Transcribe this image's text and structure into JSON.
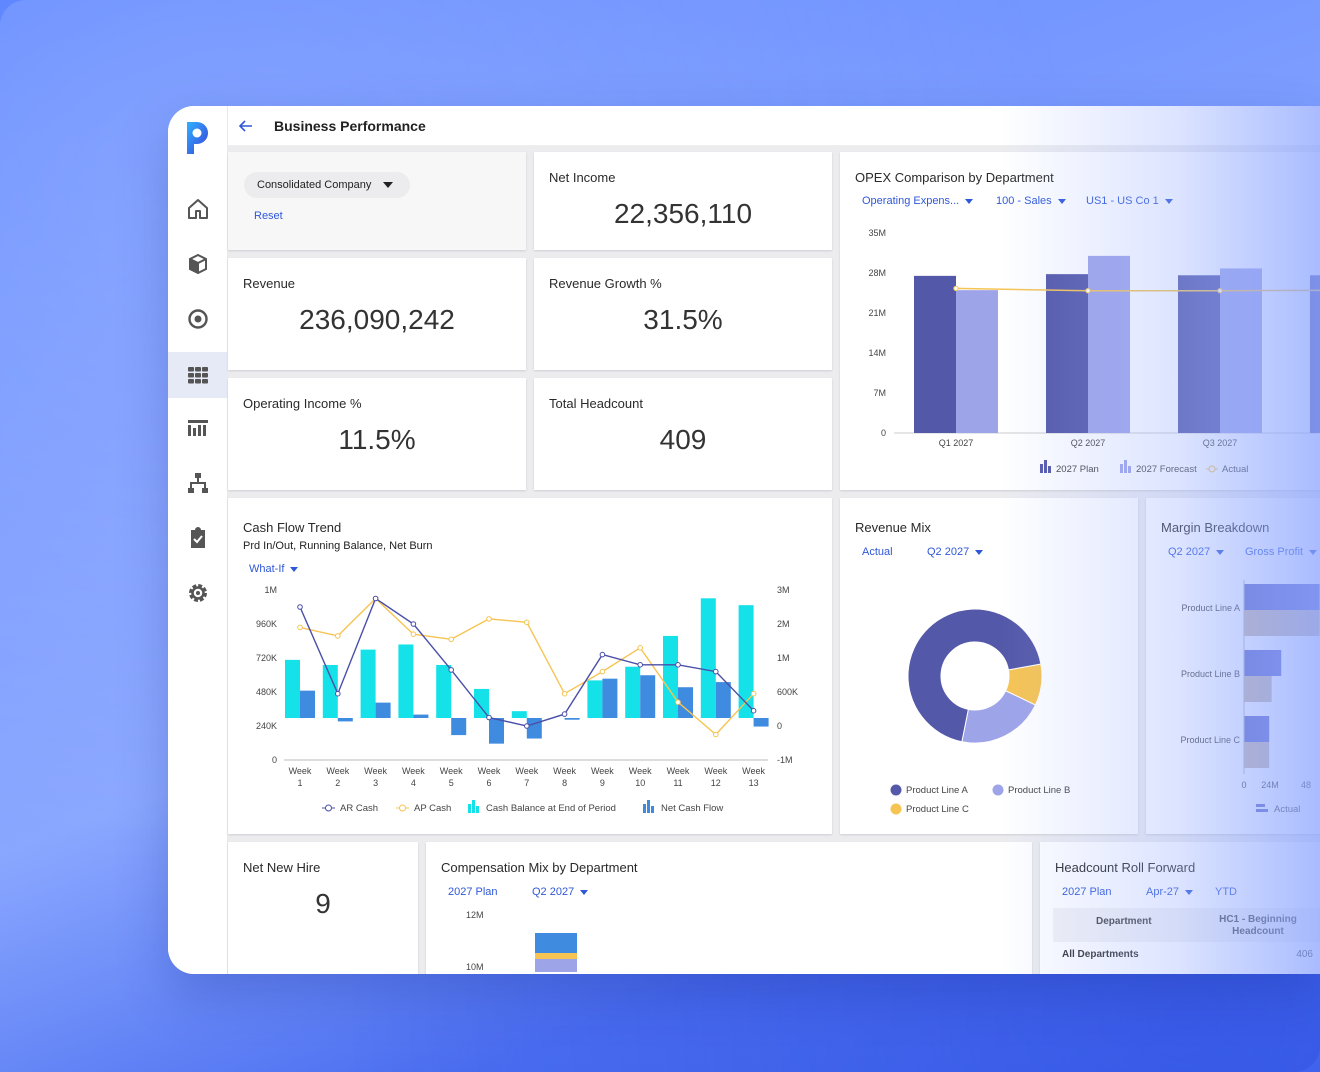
{
  "header": {
    "title": "Business Performance"
  },
  "sidebar": {
    "items": [
      "home-icon",
      "cube-icon",
      "target-icon",
      "grid-icon",
      "report-icon",
      "hierarchy-icon",
      "clipboard-icon",
      "gear-icon"
    ],
    "active_index": 3
  },
  "filters": {
    "company": "Consolidated Company",
    "reset": "Reset"
  },
  "kpis": {
    "net_income": {
      "label": "Net Income",
      "value": "22,356,110"
    },
    "revenue": {
      "label": "Revenue",
      "value": "236,090,242"
    },
    "revenue_growth": {
      "label": "Revenue Growth %",
      "value": "31.5%"
    },
    "operating_income": {
      "label": "Operating Income %",
      "value": "11.5%"
    },
    "headcount": {
      "label": "Total Headcount",
      "value": "409"
    },
    "net_new_hire": {
      "label": "Net New Hire",
      "value": "9"
    }
  },
  "opex": {
    "title": "OPEX Comparison by Department",
    "filters": [
      "Operating Expens...",
      "100 - Sales",
      "US1 - US Co 1"
    ],
    "legend": [
      "2027 Plan",
      "2027 Forecast",
      "Actual"
    ],
    "chart_data": {
      "type": "bar",
      "categories": [
        "Q1 2027",
        "Q2 2027",
        "Q3 2027"
      ],
      "series": [
        {
          "name": "2027 Plan",
          "values": [
            27.5,
            27.8,
            27.6
          ]
        },
        {
          "name": "2027 Forecast",
          "values": [
            25.0,
            31.0,
            28.8
          ]
        },
        {
          "name": "Actual",
          "values": [
            25.3,
            24.9,
            24.9
          ]
        }
      ],
      "yticks": [
        "35M",
        "28M",
        "21M",
        "14M",
        "7M",
        "0"
      ],
      "ylim": [
        0,
        35
      ]
    }
  },
  "cashflow": {
    "title": "Cash Flow Trend",
    "subtitle": "Prd In/Out, Running Balance, Net Burn",
    "filter": "What-If",
    "left_ticks": [
      "1M",
      "960K",
      "720K",
      "480K",
      "240K",
      "0"
    ],
    "right_ticks": [
      "3M",
      "2M",
      "1M",
      "600K",
      "0",
      "-1M"
    ],
    "legend": [
      "AR Cash",
      "AP Cash",
      "Cash Balance at End of Period",
      "Net Cash Flow"
    ],
    "chart_data": {
      "type": "bar",
      "categories": [
        "Week 1",
        "Week 2",
        "Week 3",
        "Week 4",
        "Week 5",
        "Week 6",
        "Week 7",
        "Week 8",
        "Week 9",
        "Week 10",
        "Week 11",
        "Week 12",
        "Week 13"
      ],
      "series": [
        {
          "name": "Cash Balance at End of Period",
          "values": [
            1.7,
            1.55,
            2.0,
            2.15,
            1.55,
            0.85,
            0.2,
            0,
            1.1,
            1.5,
            2.4,
            3.5,
            3.3
          ]
        },
        {
          "name": "Net Cash Flow",
          "values": [
            0.8,
            -0.1,
            0.45,
            0.1,
            -0.5,
            -0.75,
            -0.6,
            -0.05,
            1.15,
            1.25,
            0.9,
            1.05,
            -0.25
          ]
        },
        {
          "name": "AR Cash",
          "values": [
            900000,
            390000,
            950000,
            800000,
            530000,
            250000,
            200000,
            270000,
            620000,
            560000,
            560000,
            520000,
            290000
          ]
        },
        {
          "name": "AP Cash",
          "values": [
            780000,
            730000,
            950000,
            740000,
            710000,
            830000,
            810000,
            390000,
            520000,
            660000,
            340000,
            150000,
            390000
          ]
        }
      ]
    }
  },
  "revenue_mix": {
    "title": "Revenue Mix",
    "filters": [
      "Actual",
      "Q2 2027"
    ],
    "legend": [
      "Product Line A",
      "Product Line B",
      "Product Line C"
    ],
    "chart_data": {
      "type": "pie",
      "categories": [
        "Product Line A",
        "Product Line B",
        "Product Line C"
      ],
      "values": [
        69,
        21,
        10
      ]
    }
  },
  "margin": {
    "title": "Margin Breakdown",
    "filters": [
      "Q2 2027",
      "Gross Profit"
    ],
    "rows": [
      "Product Line A",
      "Product Line B",
      "Product Line C"
    ],
    "xticks": [
      "0",
      "24M",
      "48"
    ],
    "legend": "Actual",
    "chart_data": {
      "type": "bar",
      "categories": [
        "Product Line A",
        "Product Line B",
        "Product Line C"
      ],
      "series": [
        {
          "values": [
            63,
            31,
            21
          ]
        },
        {
          "values": [
            63,
            23,
            21
          ]
        }
      ]
    }
  },
  "compensation": {
    "title": "Compensation Mix by Department",
    "filters": [
      "2027 Plan",
      "Q2 2027"
    ],
    "yticks": [
      "12M",
      "10M"
    ]
  },
  "headcount_roll": {
    "title": "Headcount Roll Forward",
    "filters": [
      "2027 Plan",
      "Apr-27",
      "YTD"
    ],
    "columns": [
      "Department",
      "HC1 - Beginning Headcount"
    ],
    "rows": [
      [
        "All Departments",
        "406"
      ]
    ]
  },
  "colors": {
    "dark": "#5458a8",
    "light": "#9ea4e8",
    "cyan": "#15e2e8",
    "blue": "#3f8be0",
    "yellow": "#f6c453",
    "accent": "#2f58d8"
  }
}
